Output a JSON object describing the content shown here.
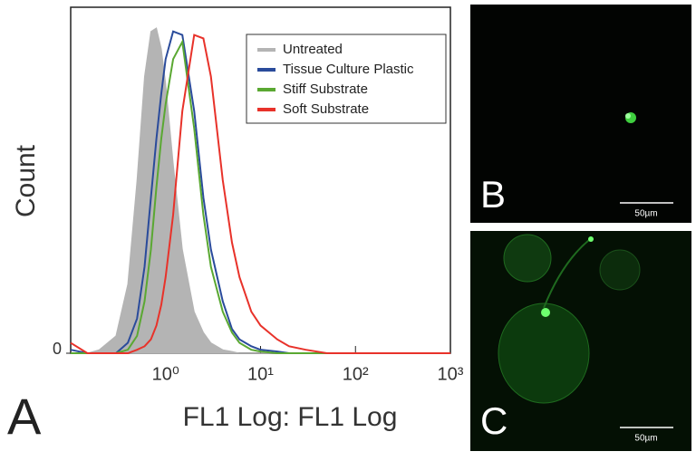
{
  "chart_data": {
    "type": "line",
    "x_label": "FL1 Log: FL1 Log",
    "y_label": "Count",
    "log_x": true,
    "xlim": [
      0.1,
      1000
    ],
    "xticks": [
      {
        "value": 1,
        "label": "10⁰"
      },
      {
        "value": 10,
        "label": "10¹"
      },
      {
        "value": 100,
        "label": "10²"
      },
      {
        "value": 1000,
        "label": "10³"
      }
    ],
    "ylim": [
      0,
      100
    ],
    "yticks": [
      0
    ],
    "legend": "upper right",
    "x": [
      0.1,
      0.15,
      0.2,
      0.3,
      0.4,
      0.5,
      0.6,
      0.7,
      0.8,
      0.9,
      1,
      1.2,
      1.5,
      2,
      2.5,
      3,
      4,
      5,
      6,
      8,
      10,
      15,
      20,
      30,
      50,
      100,
      1000
    ],
    "series": [
      {
        "name": "Untreated",
        "color": "#b4b4b4",
        "fill": true,
        "values": [
          0,
          0,
          1,
          5,
          20,
          50,
          80,
          93,
          94,
          88,
          78,
          55,
          30,
          12,
          6,
          3,
          1,
          0.5,
          0,
          0,
          0,
          0,
          0,
          0,
          0,
          0,
          0
        ]
      },
      {
        "name": "Tissue Culture Plastic",
        "color": "#2a4b9b",
        "fill": false,
        "values": [
          1,
          0,
          0,
          0,
          3,
          10,
          25,
          45,
          62,
          75,
          85,
          93,
          92,
          70,
          45,
          30,
          15,
          7,
          4,
          2,
          1,
          0.5,
          0,
          0,
          0,
          0,
          0
        ]
      },
      {
        "name": "Stiff Substrate",
        "color": "#5aa832",
        "fill": false,
        "values": [
          0,
          0,
          0,
          0,
          1,
          5,
          15,
          30,
          48,
          62,
          72,
          85,
          90,
          65,
          40,
          25,
          12,
          6,
          3,
          1,
          0.5,
          0,
          0,
          0,
          0,
          0,
          0
        ]
      },
      {
        "name": "Soft Substrate",
        "color": "#e8322a",
        "fill": false,
        "values": [
          3,
          0,
          0,
          0,
          0,
          1,
          2,
          4,
          8,
          14,
          22,
          40,
          70,
          92,
          91,
          80,
          50,
          32,
          22,
          12,
          8,
          4,
          2,
          1,
          0,
          0,
          0
        ]
      }
    ]
  },
  "panels": {
    "a": "A",
    "b": "B",
    "c": "C"
  },
  "scale_bars": [
    "50µm",
    "50µm"
  ]
}
